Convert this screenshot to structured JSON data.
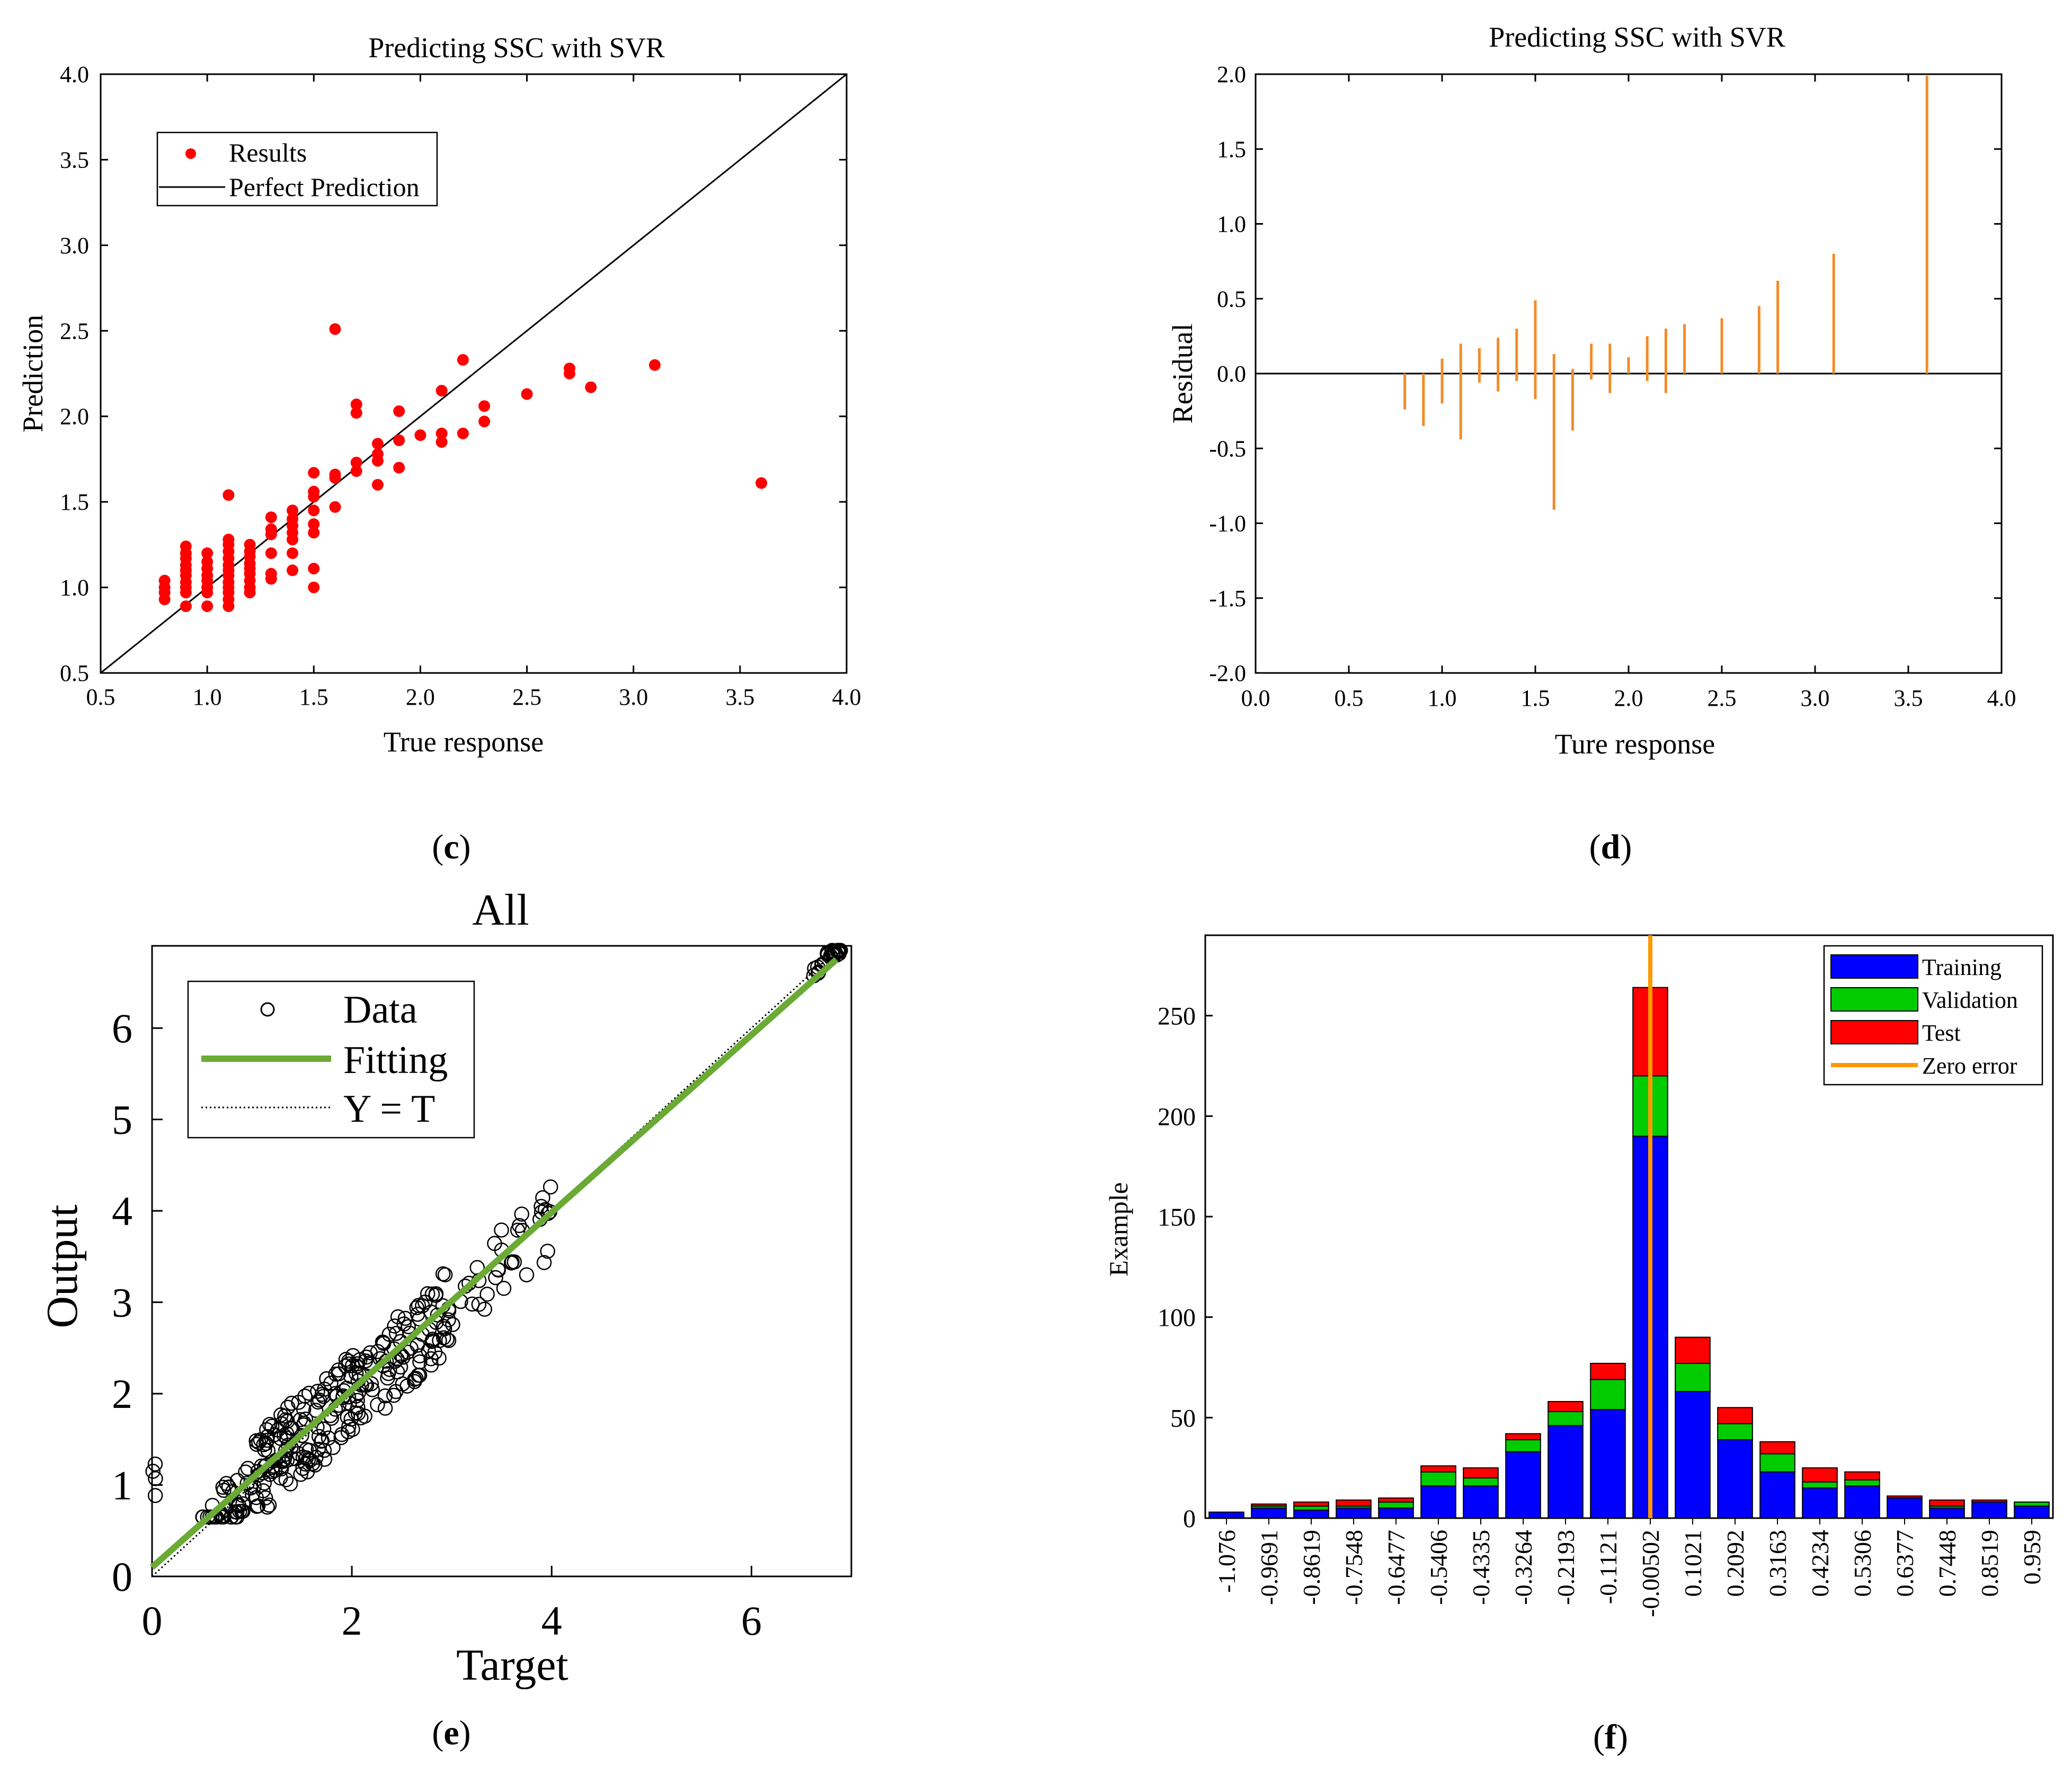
{
  "chart_data": [
    {
      "panel": "c",
      "type": "scatter",
      "title": "Predicting SSC with SVR",
      "xlabel": "True response",
      "ylabel": "Prediction",
      "xlim": [
        0.5,
        4.0
      ],
      "ylim": [
        0.5,
        4.0
      ],
      "xticks": [
        "0.5",
        "1.0",
        "1.5",
        "2.0",
        "2.5",
        "3.0",
        "3.5",
        "4.0"
      ],
      "yticks": [
        "0.5",
        "1.0",
        "1.5",
        "2.0",
        "2.5",
        "3.0",
        "3.5",
        "4.0"
      ],
      "legend": {
        "position": "top-left",
        "items": [
          "Results",
          "Perfect Prediction"
        ]
      },
      "colors": {
        "points": "#ff0000",
        "line": "#000000"
      },
      "series": [
        {
          "name": "Results",
          "points": [
            [
              0.8,
              0.93
            ],
            [
              0.8,
              0.97
            ],
            [
              0.8,
              1.0
            ],
            [
              0.8,
              1.04
            ],
            [
              0.9,
              0.89
            ],
            [
              0.9,
              0.97
            ],
            [
              0.9,
              1.0
            ],
            [
              0.9,
              1.03
            ],
            [
              0.9,
              1.07
            ],
            [
              0.9,
              1.1
            ],
            [
              0.9,
              1.13
            ],
            [
              0.9,
              1.17
            ],
            [
              0.9,
              1.2
            ],
            [
              0.9,
              1.24
            ],
            [
              1.0,
              0.89
            ],
            [
              1.0,
              0.97
            ],
            [
              1.0,
              1.0
            ],
            [
              1.0,
              1.04
            ],
            [
              1.0,
              1.07
            ],
            [
              1.0,
              1.11
            ],
            [
              1.0,
              1.15
            ],
            [
              1.0,
              1.2
            ],
            [
              1.1,
              0.89
            ],
            [
              1.1,
              0.93
            ],
            [
              1.1,
              0.97
            ],
            [
              1.1,
              1.0
            ],
            [
              1.1,
              1.03
            ],
            [
              1.1,
              1.07
            ],
            [
              1.1,
              1.1
            ],
            [
              1.1,
              1.13
            ],
            [
              1.1,
              1.17
            ],
            [
              1.1,
              1.21
            ],
            [
              1.1,
              1.25
            ],
            [
              1.1,
              1.28
            ],
            [
              1.1,
              1.54
            ],
            [
              1.2,
              0.97
            ],
            [
              1.2,
              1.0
            ],
            [
              1.2,
              1.04
            ],
            [
              1.2,
              1.08
            ],
            [
              1.2,
              1.11
            ],
            [
              1.2,
              1.14
            ],
            [
              1.2,
              1.18
            ],
            [
              1.2,
              1.21
            ],
            [
              1.2,
              1.25
            ],
            [
              1.3,
              1.05
            ],
            [
              1.3,
              1.08
            ],
            [
              1.3,
              1.2
            ],
            [
              1.3,
              1.31
            ],
            [
              1.3,
              1.34
            ],
            [
              1.3,
              1.41
            ],
            [
              1.4,
              1.1
            ],
            [
              1.4,
              1.2
            ],
            [
              1.4,
              1.28
            ],
            [
              1.4,
              1.32
            ],
            [
              1.4,
              1.36
            ],
            [
              1.4,
              1.4
            ],
            [
              1.4,
              1.45
            ],
            [
              1.5,
              1.0
            ],
            [
              1.5,
              1.11
            ],
            [
              1.5,
              1.32
            ],
            [
              1.5,
              1.37
            ],
            [
              1.5,
              1.45
            ],
            [
              1.5,
              1.53
            ],
            [
              1.5,
              1.56
            ],
            [
              1.5,
              1.67
            ],
            [
              1.6,
              1.47
            ],
            [
              1.6,
              1.64
            ],
            [
              1.6,
              1.66
            ],
            [
              1.6,
              2.51
            ],
            [
              1.7,
              1.68
            ],
            [
              1.7,
              1.73
            ],
            [
              1.7,
              2.02
            ],
            [
              1.7,
              2.07
            ],
            [
              1.8,
              1.6
            ],
            [
              1.8,
              1.74
            ],
            [
              1.8,
              1.78
            ],
            [
              1.8,
              1.84
            ],
            [
              1.9,
              1.7
            ],
            [
              1.9,
              1.86
            ],
            [
              1.9,
              2.03
            ],
            [
              2.0,
              1.89
            ],
            [
              2.1,
              1.85
            ],
            [
              2.1,
              1.9
            ],
            [
              2.1,
              2.15
            ],
            [
              2.2,
              1.9
            ],
            [
              2.2,
              2.33
            ],
            [
              2.3,
              1.97
            ],
            [
              2.3,
              2.06
            ],
            [
              2.5,
              2.13
            ],
            [
              2.7,
              2.25
            ],
            [
              2.7,
              2.28
            ],
            [
              2.8,
              2.17
            ],
            [
              3.1,
              2.3
            ],
            [
              3.6,
              1.61
            ]
          ]
        },
        {
          "name": "Perfect Prediction",
          "line": [
            [
              0.5,
              0.5
            ],
            [
              4.0,
              4.0
            ]
          ]
        }
      ],
      "caption": "(c)"
    },
    {
      "panel": "d",
      "type": "stem",
      "title": "Predicting SSC with SVR",
      "xlabel": "Ture response",
      "ylabel": "Residual",
      "xlim": [
        0.0,
        4.0
      ],
      "ylim": [
        -2.0,
        2.0
      ],
      "xticks": [
        "0.0",
        "0.5",
        "1.0",
        "1.5",
        "2.0",
        "2.5",
        "3.0",
        "3.5",
        "4.0"
      ],
      "yticks": [
        "-2.0",
        "-1.5",
        "-1.0",
        "-0.5",
        "0.0",
        "0.5",
        "1.0",
        "1.5",
        "2.0"
      ],
      "colors": {
        "stems": "#f28c28",
        "zero_line": "#000000"
      },
      "stems": [
        {
          "x": 0.8,
          "min": -0.24,
          "max": 0.0
        },
        {
          "x": 0.9,
          "min": -0.35,
          "max": 0.0
        },
        {
          "x": 1.0,
          "min": -0.2,
          "max": 0.1
        },
        {
          "x": 1.1,
          "min": -0.44,
          "max": 0.2
        },
        {
          "x": 1.2,
          "min": -0.06,
          "max": 0.17
        },
        {
          "x": 1.3,
          "min": -0.12,
          "max": 0.24
        },
        {
          "x": 1.4,
          "min": -0.05,
          "max": 0.3
        },
        {
          "x": 1.5,
          "min": -0.17,
          "max": 0.49
        },
        {
          "x": 1.6,
          "min": -0.91,
          "max": 0.13
        },
        {
          "x": 1.7,
          "min": -0.38,
          "max": 0.03
        },
        {
          "x": 1.8,
          "min": -0.04,
          "max": 0.2
        },
        {
          "x": 1.9,
          "min": -0.13,
          "max": 0.2
        },
        {
          "x": 2.0,
          "min": 0.0,
          "max": 0.11
        },
        {
          "x": 2.1,
          "min": -0.05,
          "max": 0.25
        },
        {
          "x": 2.2,
          "min": -0.13,
          "max": 0.3
        },
        {
          "x": 2.3,
          "min": 0.0,
          "max": 0.33
        },
        {
          "x": 2.5,
          "min": 0.0,
          "max": 0.37
        },
        {
          "x": 2.7,
          "min": 0.0,
          "max": 0.45
        },
        {
          "x": 2.8,
          "min": 0.0,
          "max": 0.62
        },
        {
          "x": 3.1,
          "min": 0.0,
          "max": 0.8
        },
        {
          "x": 3.6,
          "min": 0.0,
          "max": 1.99
        }
      ],
      "caption": "(d)"
    },
    {
      "panel": "e",
      "type": "scatter",
      "title": "All",
      "xlabel": "Target",
      "ylabel": "Output",
      "xlim": [
        0,
        7
      ],
      "ylim": [
        0,
        6.9
      ],
      "xticks": [
        "0",
        "2",
        "4",
        "6"
      ],
      "yticks": [
        "0",
        "1",
        "2",
        "3",
        "4",
        "5",
        "6"
      ],
      "legend": {
        "position": "top-left",
        "items": [
          "Data",
          "Fitting",
          "Y = T"
        ]
      },
      "colors": {
        "points": "#000000",
        "fit": "#6aaa35",
        "identity": "#000000"
      },
      "fit_line": [
        [
          0,
          0.1
        ],
        [
          6.85,
          6.75
        ]
      ],
      "identity_line": [
        [
          0,
          0
        ],
        [
          6.85,
          6.85
        ]
      ],
      "caption": "(e)"
    },
    {
      "panel": "f",
      "type": "bar",
      "stacked": true,
      "ylabel": "Example",
      "ylim": [
        0,
        290
      ],
      "yticks": [
        "0",
        "50",
        "100",
        "150",
        "200",
        "250"
      ],
      "categories": [
        "-1.076",
        "-0.9691",
        "-0.8619",
        "-0.7548",
        "-0.6477",
        "-0.5406",
        "-0.4335",
        "-0.3264",
        "-0.2193",
        "-0.1121",
        "-0.00502",
        "0.1021",
        "0.2092",
        "0.3163",
        "0.4234",
        "0.5306",
        "0.6377",
        "0.7448",
        "0.8519",
        "0.959"
      ],
      "series": [
        {
          "name": "Training",
          "color": "#0000ff",
          "values": [
            3,
            5,
            4,
            5,
            5,
            16,
            16,
            33,
            46,
            54,
            190,
            63,
            39,
            23,
            15,
            16,
            10,
            5,
            8,
            6
          ]
        },
        {
          "name": "Validation",
          "color": "#00cc00",
          "values": [
            0,
            1,
            2,
            1,
            3,
            7,
            4,
            6,
            7,
            15,
            30,
            14,
            8,
            9,
            3,
            3,
            0,
            1,
            0,
            2
          ]
        },
        {
          "name": "Test",
          "color": "#ff0000",
          "values": [
            0,
            1,
            2,
            3,
            2,
            3,
            5,
            3,
            5,
            8,
            44,
            13,
            8,
            6,
            7,
            4,
            1,
            3,
            1,
            0
          ]
        }
      ],
      "zero_error": {
        "name": "Zero error",
        "color": "#ff9900",
        "index": 10
      },
      "legend": {
        "position": "top-right",
        "items": [
          "Training",
          "Validation",
          "Test",
          "Zero error"
        ]
      },
      "caption": "(f)"
    }
  ]
}
